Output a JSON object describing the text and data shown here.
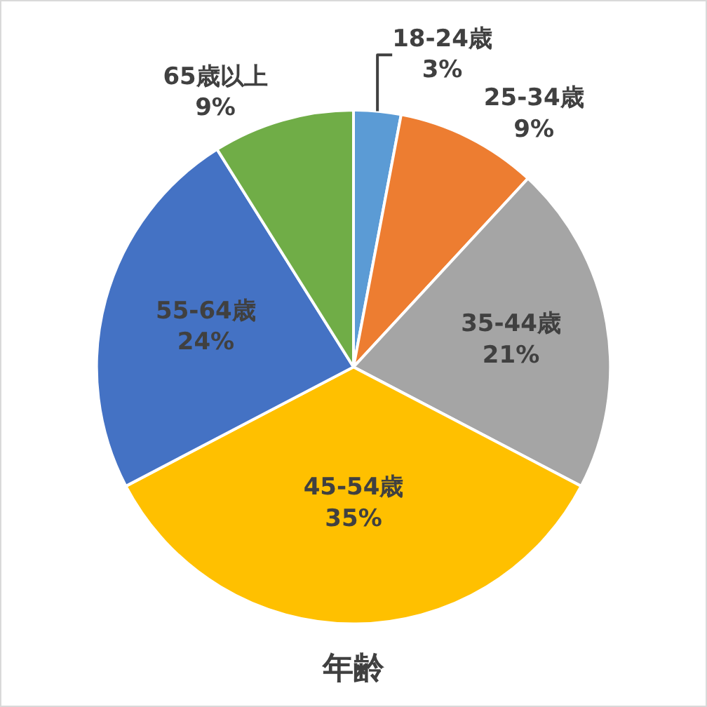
{
  "chart_data": {
    "type": "pie",
    "title": "年齢",
    "categories": [
      "18-24歳",
      "25-34歳",
      "35-44歳",
      "45-54歳",
      "55-64歳",
      "65歳以上"
    ],
    "values": [
      3,
      9,
      21,
      35,
      24,
      9
    ],
    "value_labels": [
      "3%",
      "9%",
      "21%",
      "35%",
      "24%",
      "9%"
    ],
    "colors": [
      "#5b9bd5",
      "#ed7d31",
      "#a5a5a5",
      "#ffc000",
      "#4472c4",
      "#70ad47"
    ],
    "legend": false
  }
}
